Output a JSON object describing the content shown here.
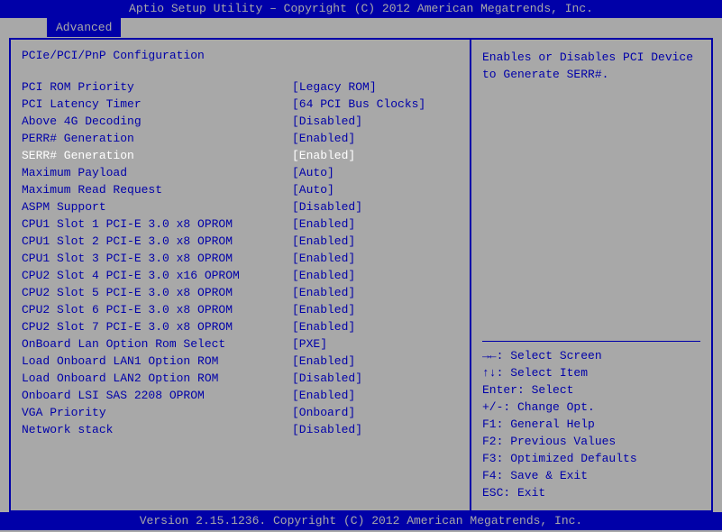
{
  "title": "Aptio Setup Utility – Copyright (C) 2012 American Megatrends, Inc.",
  "tab": "Advanced",
  "section_title": "PCIe/PCI/PnP Configuration",
  "settings": [
    {
      "label": "PCI ROM Priority",
      "value": "[Legacy ROM]",
      "selected": false
    },
    {
      "label": "PCI Latency Timer",
      "value": "[64 PCI Bus Clocks]",
      "selected": false
    },
    {
      "label": "Above 4G Decoding",
      "value": "[Disabled]",
      "selected": false
    },
    {
      "label": "PERR# Generation",
      "value": "[Enabled]",
      "selected": false
    },
    {
      "label": "SERR# Generation",
      "value": "[Enabled]",
      "selected": true
    },
    {
      "label": "Maximum Payload",
      "value": "[Auto]",
      "selected": false
    },
    {
      "label": "Maximum Read Request",
      "value": "[Auto]",
      "selected": false
    },
    {
      "label": "ASPM Support",
      "value": "[Disabled]",
      "selected": false
    },
    {
      "label": "CPU1 Slot 1 PCI-E 3.0 x8 OPROM",
      "value": "[Enabled]",
      "selected": false
    },
    {
      "label": "CPU1 Slot 2 PCI-E 3.0 x8 OPROM",
      "value": "[Enabled]",
      "selected": false
    },
    {
      "label": "CPU1 Slot 3 PCI-E 3.0 x8 OPROM",
      "value": "[Enabled]",
      "selected": false
    },
    {
      "label": "CPU2 Slot 4 PCI-E 3.0 x16 OPROM",
      "value": "[Enabled]",
      "selected": false
    },
    {
      "label": "CPU2 Slot 5 PCI-E 3.0 x8 OPROM",
      "value": "[Enabled]",
      "selected": false
    },
    {
      "label": "CPU2 Slot 6 PCI-E 3.0 x8 OPROM",
      "value": "[Enabled]",
      "selected": false
    },
    {
      "label": "CPU2 Slot 7 PCI-E 3.0 x8 OPROM",
      "value": "[Enabled]",
      "selected": false
    },
    {
      "label": "OnBoard Lan Option Rom Select",
      "value": "[PXE]",
      "selected": false
    },
    {
      "label": "Load Onboard LAN1 Option ROM",
      "value": "[Enabled]",
      "selected": false
    },
    {
      "label": "Load Onboard LAN2 Option ROM",
      "value": "[Disabled]",
      "selected": false
    },
    {
      "label": "Onboard LSI SAS 2208 OPROM",
      "value": "[Enabled]",
      "selected": false
    },
    {
      "label": "VGA Priority",
      "value": "[Onboard]",
      "selected": false
    },
    {
      "label": "Network stack",
      "value": "[Disabled]",
      "selected": false
    }
  ],
  "help": {
    "line1": "Enables or Disables PCI Device",
    "line2": "to Generate SERR#."
  },
  "keys": [
    "→←: Select Screen",
    "↑↓: Select Item",
    "Enter: Select",
    "+/-: Change Opt.",
    "F1: General Help",
    "F2: Previous Values",
    "F3: Optimized Defaults",
    "F4: Save & Exit",
    "ESC: Exit"
  ],
  "footer": "Version 2.15.1236. Copyright (C) 2012 American Megatrends, Inc."
}
